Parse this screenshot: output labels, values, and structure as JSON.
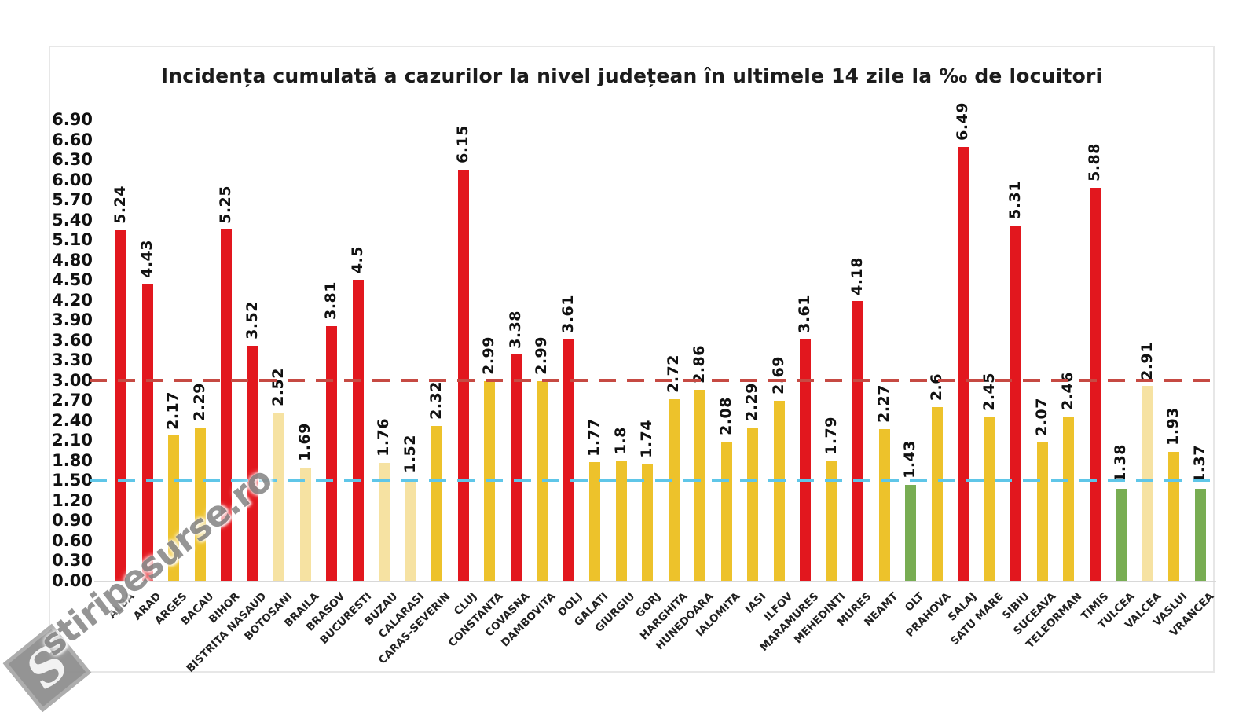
{
  "chart_data": {
    "type": "bar",
    "title": "Incidența cumulată a cazurilor la nivel județean în ultimele 14 zile la ‰ de locuitori",
    "xlabel": "",
    "ylabel": "",
    "ylim": [
      0,
      6.9
    ],
    "grid": false,
    "legend": "none",
    "y_ticks": [
      "0.00",
      "0.30",
      "0.60",
      "0.90",
      "1.20",
      "1.50",
      "1.80",
      "2.10",
      "2.40",
      "2.70",
      "3.00",
      "3.30",
      "3.60",
      "3.90",
      "4.20",
      "4.50",
      "4.80",
      "5.10",
      "5.40",
      "5.70",
      "6.00",
      "6.30",
      "6.60",
      "6.90"
    ],
    "categories": [
      "ALBA",
      "ARAD",
      "ARGES",
      "BACAU",
      "BIHOR",
      "BISTRITA NASAUD",
      "BOTOSANI",
      "BRAILA",
      "BRASOV",
      "BUCURESTI",
      "BUZAU",
      "CALARASI",
      "CARAS-SEVERIN",
      "CLUJ",
      "CONSTANTA",
      "COVASNA",
      "DAMBOVITA",
      "DOLJ",
      "GALATI",
      "GIURGIU",
      "GORJ",
      "HARGHITA",
      "HUNEDOARA",
      "IALOMITA",
      "IASI",
      "ILFOV",
      "MARAMURES",
      "MEHEDINTI",
      "MURES",
      "NEAMT",
      "OLT",
      "PRAHOVA",
      "SALAJ",
      "SATU MARE",
      "SIBIU",
      "SUCEAVA",
      "TELEORMAN",
      "TIMIS",
      "TULCEA",
      "VALCEA",
      "VASLUI",
      "VRANCEA"
    ],
    "values": [
      5.24,
      4.43,
      2.17,
      2.29,
      5.25,
      3.52,
      2.52,
      1.69,
      3.81,
      4.5,
      1.76,
      1.52,
      2.32,
      6.15,
      2.99,
      3.38,
      2.99,
      3.61,
      1.77,
      1.8,
      1.74,
      2.72,
      2.86,
      2.08,
      2.29,
      2.69,
      3.61,
      1.79,
      4.18,
      2.27,
      1.43,
      2.6,
      6.49,
      2.45,
      5.31,
      2.07,
      2.46,
      5.88,
      1.38,
      2.91,
      1.93,
      1.37
    ],
    "value_labels": [
      "5.24",
      "4.43",
      "2.17",
      "2.29",
      "5.25",
      "3.52",
      "2.52",
      "1.69",
      "3.81",
      "4.5",
      "1.76",
      "1.52",
      "2.32",
      "6.15",
      "2.99",
      "3.38",
      "2.99",
      "3.61",
      "1.77",
      "1.8",
      "1.74",
      "2.72",
      "2.86",
      "2.08",
      "2.29",
      "2.69",
      "3.61",
      "1.79",
      "4.18",
      "2.27",
      "1.43",
      "2.6",
      "6.49",
      "2.45",
      "5.31",
      "2.07",
      "2.46",
      "5.88",
      "1.38",
      "2.91",
      "1.93",
      "1.37"
    ],
    "bar_color_keys": [
      "red",
      "red",
      "gold",
      "gold",
      "red",
      "red",
      "pale",
      "pale",
      "red",
      "red",
      "pale",
      "pale",
      "gold",
      "red",
      "gold",
      "red",
      "gold",
      "red",
      "gold",
      "gold",
      "gold",
      "gold",
      "gold",
      "gold",
      "gold",
      "gold",
      "red",
      "gold",
      "red",
      "gold",
      "green",
      "gold",
      "red",
      "gold",
      "red",
      "gold",
      "gold",
      "red",
      "green",
      "pale",
      "gold",
      "green"
    ],
    "palette": {
      "red": "#E2171E",
      "gold": "#EDC22B",
      "pale": "#F6E2A2",
      "green": "#78AD53"
    },
    "reference_lines": [
      {
        "name": "upper-threshold",
        "value": 3.0,
        "color": "#C64A43",
        "style": "dashed"
      },
      {
        "name": "lower-threshold",
        "value": 1.5,
        "color": "#5FC6E8",
        "style": "dashed"
      }
    ]
  },
  "watermark": {
    "logo_letter": "S",
    "text": "stiripesurse.ro"
  }
}
